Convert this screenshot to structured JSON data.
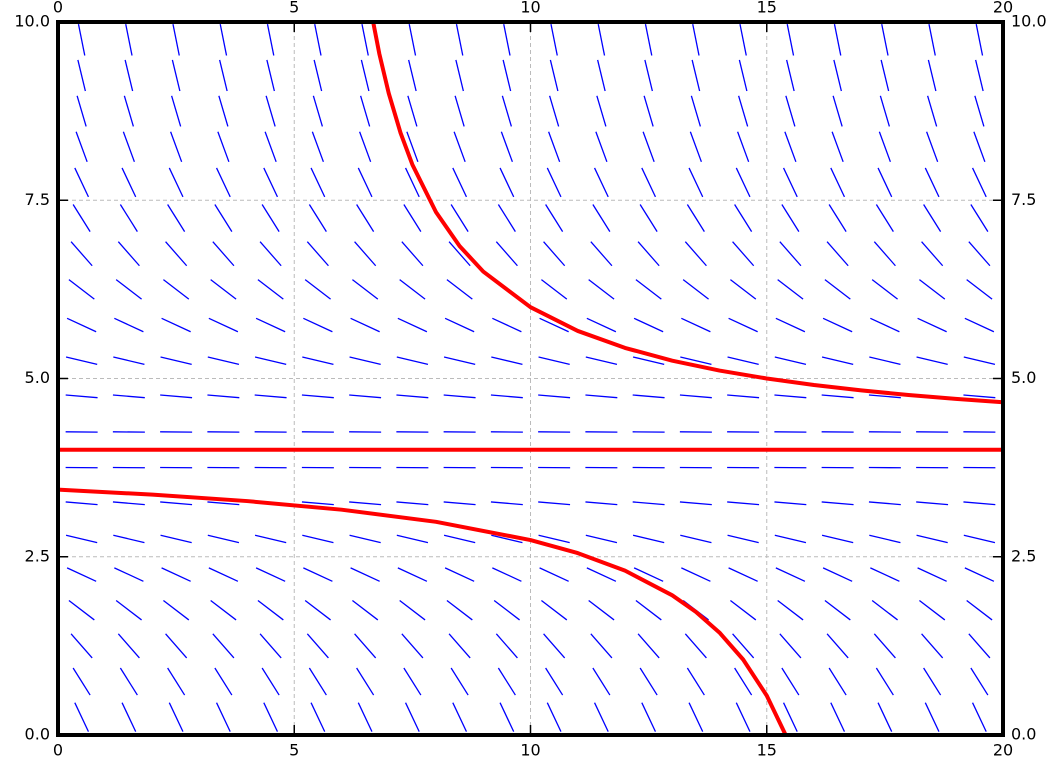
{
  "chart_data": {
    "type": "line",
    "xlim": [
      0,
      20
    ],
    "ylim": [
      0,
      10
    ],
    "xticks": [
      0,
      5,
      10,
      15,
      20
    ],
    "yticks": [
      {
        "value": 0,
        "label": "0.0"
      },
      {
        "value": 2.5,
        "label": "2.5"
      },
      {
        "value": 5,
        "label": "5.0"
      },
      {
        "value": 7.5,
        "label": "7.5"
      },
      {
        "value": 10,
        "label": "10.0"
      }
    ],
    "grid": true,
    "field": {
      "color": "#0000ff",
      "x": [
        0.5,
        1.5,
        2.5,
        3.5,
        4.5,
        5.5,
        6.5,
        7.5,
        8.5,
        9.5,
        10.5,
        11.5,
        12.5,
        13.5,
        14.5,
        15.5,
        16.5,
        17.5,
        18.5,
        19.5
      ],
      "y": [
        0.25,
        0.75,
        1.25,
        1.75,
        2.25,
        2.75,
        3.25,
        3.75,
        4.25,
        4.75,
        5.25,
        5.75,
        6.25,
        6.75,
        7.25,
        7.75,
        8.25,
        8.75,
        9.25,
        9.75
      ],
      "slopes": [
        -1.40625,
        -1.05625,
        -0.75625,
        -0.50625,
        -0.30625,
        -0.15625,
        -0.05625,
        -0.00625,
        -0.00625,
        -0.05625,
        -0.15625,
        -0.30625,
        -0.50625,
        -0.75625,
        -1.05625,
        -1.40625,
        -1.80625,
        -2.25625,
        -2.75625,
        -3.30625
      ]
    },
    "series": [
      {
        "color": "#ff0000",
        "x": [
          6.67,
          6.8,
          7,
          7.25,
          7.5,
          8,
          8.5,
          9,
          10,
          11,
          12,
          13,
          14,
          15,
          16,
          17,
          18,
          19,
          20
        ],
        "values": [
          10,
          9.556,
          9,
          8.444,
          8,
          7.333,
          6.857,
          6.5,
          6,
          5.667,
          5.429,
          5.25,
          5.111,
          5,
          4.909,
          4.833,
          4.769,
          4.714,
          4.667
        ]
      },
      {
        "color": "#ff0000",
        "x": [
          0,
          20
        ],
        "values": [
          4,
          4
        ]
      },
      {
        "color": "#ff0000",
        "x": [
          0,
          2,
          4,
          6,
          8,
          10,
          11,
          12,
          13,
          13.5,
          14,
          14.5,
          15,
          15.4
        ],
        "values": [
          3.441,
          3.371,
          3.281,
          3.16,
          2.99,
          2.734,
          2.551,
          2.305,
          1.959,
          1.727,
          1.436,
          1.059,
          0.552,
          0
        ]
      }
    ]
  }
}
